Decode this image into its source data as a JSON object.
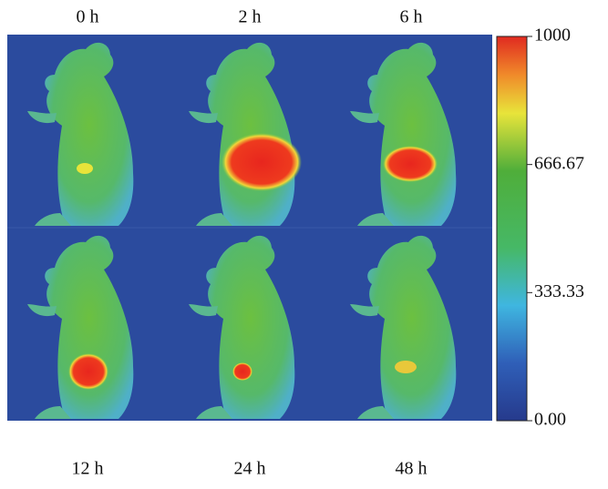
{
  "panels": [
    {
      "label": "0 h"
    },
    {
      "label": "2 h"
    },
    {
      "label": "6 h"
    },
    {
      "label": "12 h"
    },
    {
      "label": "24 h"
    },
    {
      "label": "48 h"
    }
  ],
  "colorbar": {
    "lim": [
      0,
      1000
    ],
    "ticks": [
      {
        "value": 0,
        "label": "0.00"
      },
      333.33,
      666.67,
      1000
    ]
  }
}
